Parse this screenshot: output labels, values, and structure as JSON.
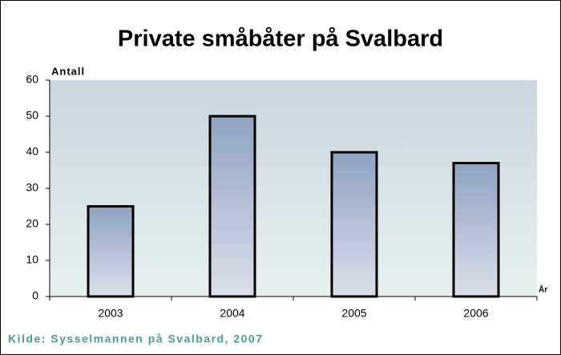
{
  "chart_data": {
    "type": "bar",
    "title": "Private småbåter på Svalbard",
    "y_label": "Antall",
    "x_label": "År",
    "source": "Kilde: Sysselmannen på Svalbard, 2007",
    "categories": [
      "2003",
      "2004",
      "2005",
      "2006"
    ],
    "values": [
      25,
      50,
      40,
      37
    ],
    "ylim": [
      0,
      60
    ],
    "yticks": [
      0,
      10,
      20,
      30,
      40,
      50,
      60
    ],
    "grid": false
  }
}
